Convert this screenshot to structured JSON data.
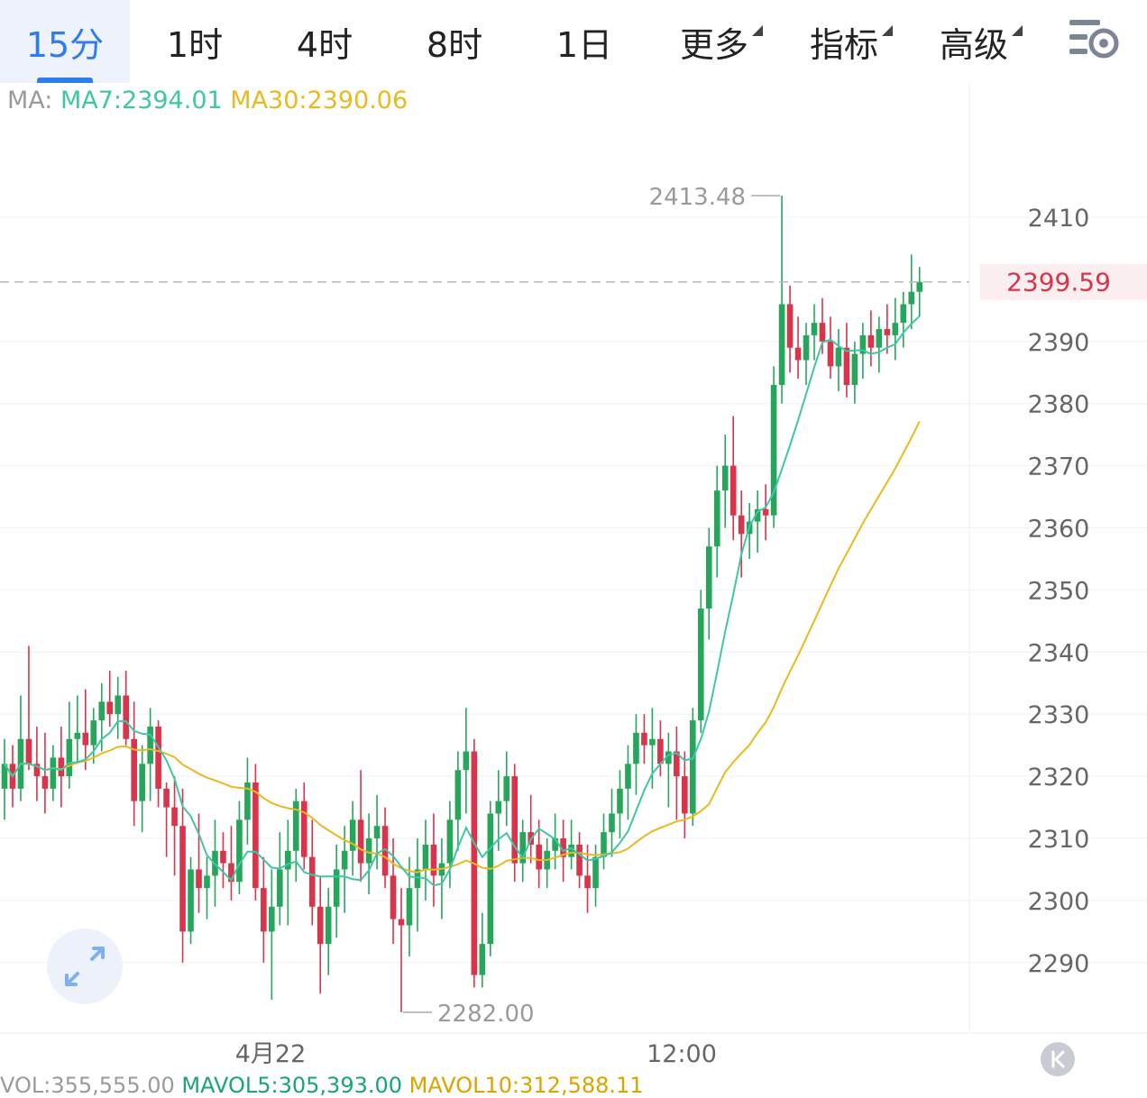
{
  "tabs": [
    {
      "label": "15分",
      "active": true,
      "dropdown": false
    },
    {
      "label": "1时",
      "active": false,
      "dropdown": false
    },
    {
      "label": "4时",
      "active": false,
      "dropdown": false
    },
    {
      "label": "8时",
      "active": false,
      "dropdown": false
    },
    {
      "label": "1日",
      "active": false,
      "dropdown": false
    },
    {
      "label": "更多",
      "active": false,
      "dropdown": true
    },
    {
      "label": "指标",
      "active": false,
      "dropdown": true
    },
    {
      "label": "高级",
      "active": false,
      "dropdown": true
    }
  ],
  "settings_icon": "chart-settings-icon",
  "ma_legend": {
    "label": "MA:",
    "ma7": "MA7:2394.01",
    "ma30": "MA30:2390.06"
  },
  "bottom_strip": {
    "vol": "VOL:355,555.00",
    "mavol5": "MAVOL5:305,393.00",
    "mavol10": "MAVOL10:312,588.11"
  },
  "colors": {
    "up": "#26a65b",
    "down": "#d8344a",
    "ma7": "#3fc6a4",
    "ma30": "#e9b920",
    "current_price": "#d8344a",
    "active_tab": "#2f7cf0"
  },
  "chart_data": {
    "type": "candlestick",
    "interval": "15分",
    "ylim": [
      2278,
      2418
    ],
    "y_ticks": [
      2290,
      2300,
      2310,
      2320,
      2330,
      2340,
      2350,
      2360,
      2370,
      2380,
      2390,
      2410
    ],
    "x_labels": [
      "4月22",
      "12:00"
    ],
    "current_price": 2399.59,
    "current_price_label": "2399.59",
    "max_label": "2413.48",
    "min_label": "2282.00",
    "candles": [
      [
        2318,
        2326,
        2313,
        2322
      ],
      [
        2322,
        2325,
        2315,
        2318
      ],
      [
        2318,
        2333,
        2316,
        2326
      ],
      [
        2326,
        2341,
        2321,
        2322
      ],
      [
        2322,
        2328,
        2316,
        2320
      ],
      [
        2320,
        2327,
        2314,
        2318
      ],
      [
        2318,
        2325,
        2316,
        2323
      ],
      [
        2323,
        2328,
        2315,
        2320
      ],
      [
        2320,
        2332,
        2318,
        2326
      ],
      [
        2326,
        2333,
        2322,
        2327
      ],
      [
        2327,
        2334,
        2321,
        2325
      ],
      [
        2325,
        2331,
        2322,
        2329
      ],
      [
        2329,
        2335,
        2324,
        2332
      ],
      [
        2332,
        2337,
        2328,
        2330
      ],
      [
        2330,
        2336,
        2326,
        2333
      ],
      [
        2333,
        2337,
        2325,
        2326
      ],
      [
        2326,
        2332,
        2312,
        2316
      ],
      [
        2316,
        2325,
        2311,
        2322
      ],
      [
        2322,
        2331,
        2316,
        2328
      ],
      [
        2328,
        2329,
        2315,
        2318
      ],
      [
        2318,
        2319,
        2307,
        2315
      ],
      [
        2315,
        2320,
        2304,
        2312
      ],
      [
        2312,
        2318,
        2290,
        2295
      ],
      [
        2295,
        2307,
        2293,
        2305
      ],
      [
        2305,
        2314,
        2298,
        2302
      ],
      [
        2302,
        2307,
        2297,
        2304
      ],
      [
        2304,
        2313,
        2299,
        2308
      ],
      [
        2308,
        2311,
        2302,
        2306
      ],
      [
        2306,
        2312,
        2300,
        2303
      ],
      [
        2303,
        2316,
        2301,
        2313
      ],
      [
        2313,
        2323,
        2309,
        2319
      ],
      [
        2319,
        2322,
        2300,
        2302
      ],
      [
        2302,
        2307,
        2290,
        2295
      ],
      [
        2295,
        2305,
        2284,
        2299
      ],
      [
        2299,
        2311,
        2296,
        2305
      ],
      [
        2305,
        2313,
        2296,
        2308
      ],
      [
        2308,
        2318,
        2303,
        2316
      ],
      [
        2316,
        2319,
        2305,
        2307
      ],
      [
        2307,
        2313,
        2296,
        2299
      ],
      [
        2299,
        2304,
        2285,
        2293
      ],
      [
        2293,
        2302,
        2288,
        2299
      ],
      [
        2299,
        2309,
        2294,
        2305
      ],
      [
        2305,
        2312,
        2298,
        2308
      ],
      [
        2308,
        2316,
        2304,
        2313
      ],
      [
        2313,
        2321,
        2303,
        2306
      ],
      [
        2306,
        2314,
        2301,
        2310
      ],
      [
        2310,
        2317,
        2305,
        2312
      ],
      [
        2312,
        2315,
        2302,
        2304
      ],
      [
        2304,
        2310,
        2293,
        2297
      ],
      [
        2297,
        2302,
        2282,
        2296
      ],
      [
        2296,
        2307,
        2291,
        2302
      ],
      [
        2302,
        2310,
        2295,
        2305
      ],
      [
        2305,
        2313,
        2300,
        2309
      ],
      [
        2309,
        2314,
        2299,
        2304
      ],
      [
        2304,
        2310,
        2297,
        2306
      ],
      [
        2306,
        2316,
        2302,
        2313
      ],
      [
        2313,
        2324,
        2308,
        2321
      ],
      [
        2321,
        2331,
        2314,
        2324
      ],
      [
        2324,
        2326,
        2286,
        2288
      ],
      [
        2288,
        2298,
        2286,
        2293
      ],
      [
        2293,
        2316,
        2291,
        2314
      ],
      [
        2314,
        2321,
        2308,
        2316
      ],
      [
        2316,
        2324,
        2312,
        2320
      ],
      [
        2320,
        2322,
        2303,
        2306
      ],
      [
        2306,
        2313,
        2303,
        2311
      ],
      [
        2311,
        2317,
        2306,
        2309
      ],
      [
        2309,
        2313,
        2302,
        2305
      ],
      [
        2305,
        2310,
        2302,
        2308
      ],
      [
        2308,
        2314,
        2305,
        2310
      ],
      [
        2310,
        2313,
        2303,
        2307
      ],
      [
        2307,
        2313,
        2305,
        2309
      ],
      [
        2309,
        2311,
        2302,
        2304
      ],
      [
        2304,
        2309,
        2298,
        2302
      ],
      [
        2302,
        2309,
        2299,
        2307
      ],
      [
        2307,
        2314,
        2305,
        2311
      ],
      [
        2311,
        2318,
        2307,
        2314
      ],
      [
        2314,
        2321,
        2310,
        2318
      ],
      [
        2318,
        2325,
        2313,
        2322
      ],
      [
        2322,
        2330,
        2317,
        2327
      ],
      [
        2327,
        2330,
        2322,
        2325
      ],
      [
        2325,
        2331,
        2318,
        2326
      ],
      [
        2326,
        2329,
        2320,
        2322
      ],
      [
        2322,
        2327,
        2315,
        2324
      ],
      [
        2324,
        2328,
        2313,
        2320
      ],
      [
        2320,
        2324,
        2310,
        2314
      ],
      [
        2314,
        2331,
        2312,
        2329
      ],
      [
        2329,
        2350,
        2327,
        2347
      ],
      [
        2347,
        2360,
        2342,
        2357
      ],
      [
        2357,
        2370,
        2352,
        2366
      ],
      [
        2366,
        2375,
        2360,
        2370
      ],
      [
        2370,
        2378,
        2358,
        2362
      ],
      [
        2362,
        2366,
        2352,
        2359
      ],
      [
        2359,
        2364,
        2355,
        2361
      ],
      [
        2361,
        2366,
        2356,
        2363
      ],
      [
        2363,
        2367,
        2358,
        2362
      ],
      [
        2362,
        2386,
        2360,
        2383
      ],
      [
        2383,
        2413.48,
        2380,
        2396
      ],
      [
        2396,
        2399,
        2385,
        2389
      ],
      [
        2389,
        2394,
        2384,
        2387
      ],
      [
        2387,
        2393,
        2383,
        2391
      ],
      [
        2391,
        2396,
        2387,
        2393
      ],
      [
        2393,
        2397,
        2388,
        2390
      ],
      [
        2390,
        2394,
        2384,
        2386
      ],
      [
        2386,
        2392,
        2382,
        2389
      ],
      [
        2389,
        2393,
        2381,
        2383
      ],
      [
        2383,
        2390,
        2380,
        2388
      ],
      [
        2388,
        2393,
        2384,
        2391
      ],
      [
        2391,
        2395,
        2386,
        2389
      ],
      [
        2389,
        2394,
        2385,
        2392
      ],
      [
        2392,
        2396,
        2388,
        2391
      ],
      [
        2391,
        2397,
        2387,
        2393
      ],
      [
        2393,
        2398,
        2389,
        2396
      ],
      [
        2396,
        2404,
        2392,
        2398
      ],
      [
        2398,
        2402,
        2394,
        2399.59
      ]
    ]
  }
}
